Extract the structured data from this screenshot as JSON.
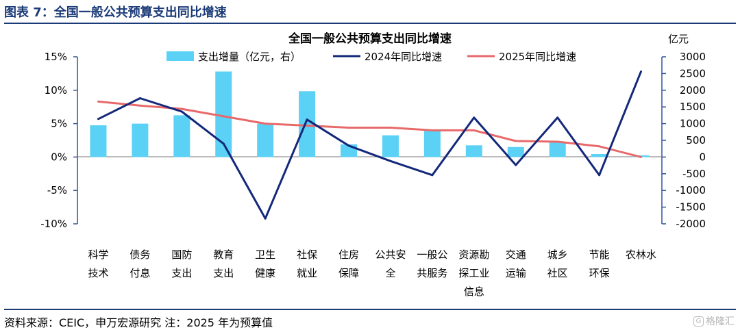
{
  "figure": {
    "title": "图表 7：全国一般公共预算支出同比增速",
    "source": "资料来源：CEIC，申万宏源研究 注：2025 年为预算值",
    "watermark": "格隆汇"
  },
  "colors": {
    "bar": "#5bd2f5",
    "line2024": "#13287a",
    "line2025": "#e8696a",
    "axis": "#2f5496",
    "accent": "#1b3a78"
  },
  "chart_data": {
    "type": "bar",
    "title": "全国一般公共预算支出同比增速",
    "right_unit": "亿元",
    "categories": [
      [
        "科学",
        "技术"
      ],
      [
        "债务",
        "付息"
      ],
      [
        "国防",
        "支出"
      ],
      [
        "教育",
        "支出"
      ],
      [
        "卫生",
        "健康"
      ],
      [
        "社保",
        "就业"
      ],
      [
        "住房",
        "保障"
      ],
      [
        "公共安",
        "全"
      ],
      [
        "一般公",
        "共服务"
      ],
      [
        "资源勘",
        "探工业",
        "信息"
      ],
      [
        "交通",
        "运输"
      ],
      [
        "城乡",
        "社区"
      ],
      [
        "节能",
        "环保"
      ],
      [
        "农林水"
      ]
    ],
    "series": [
      {
        "name": "支出增量（亿元，右）",
        "kind": "bar",
        "axis": "right",
        "values": [
          950,
          1000,
          1250,
          2560,
          1000,
          1970,
          380,
          650,
          790,
          350,
          300,
          460,
          90,
          50
        ]
      },
      {
        "name": "2024年同比增速",
        "kind": "line",
        "axis": "left",
        "values": [
          5.7,
          8.8,
          6.8,
          2.0,
          -9.2,
          5.6,
          1.7,
          -0.6,
          -2.7,
          5.9,
          -1.2,
          5.9,
          -2.7,
          12.8
        ]
      },
      {
        "name": "2025年同比增速",
        "kind": "line",
        "axis": "left",
        "values": [
          8.3,
          7.7,
          7.2,
          6.1,
          5.0,
          4.7,
          4.4,
          4.4,
          4.0,
          4.0,
          2.4,
          2.3,
          1.6,
          0.0
        ]
      }
    ],
    "left_axis": {
      "ticks": [
        "15%",
        "10%",
        "5%",
        "0%",
        "-5%",
        "-10%"
      ],
      "range": [
        -10,
        15
      ]
    },
    "right_axis": {
      "ticks": [
        "3000",
        "2500",
        "2000",
        "1500",
        "1000",
        "500",
        "0",
        "-500",
        "-1000",
        "-1500",
        "-2000"
      ],
      "range": [
        -2000,
        3000
      ]
    },
    "legend_position": "top"
  }
}
